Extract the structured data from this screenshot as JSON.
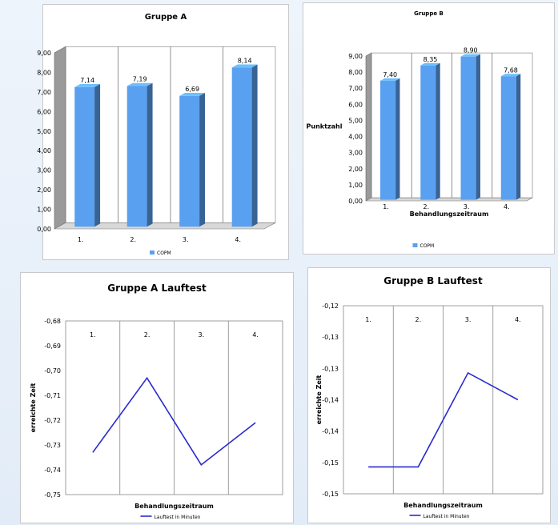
{
  "chart_data": [
    {
      "type": "bar",
      "title": "Gruppe A",
      "categories": [
        "1.",
        "2.",
        "3.",
        "4."
      ],
      "series": [
        {
          "name": "COPM",
          "values": [
            7.14,
            7.19,
            6.69,
            8.14
          ]
        }
      ],
      "value_labels": [
        "7,14",
        "7,19",
        "6,69",
        "8,14"
      ],
      "yticks": [
        "0,00",
        "1,00",
        "2,00",
        "3,00",
        "4,00",
        "5,00",
        "6,00",
        "7,00",
        "8,00",
        "9,00"
      ],
      "ylim": [
        0,
        9
      ],
      "xlabel": "",
      "ylabel": "",
      "legend": "bottom",
      "color": "#5aa0f0"
    },
    {
      "type": "bar",
      "title": "Gruppe B",
      "categories": [
        "1.",
        "2.",
        "3.",
        "4."
      ],
      "series": [
        {
          "name": "COPM",
          "values": [
            7.4,
            8.35,
            8.9,
            7.68
          ]
        }
      ],
      "value_labels": [
        "7,40",
        "8,35",
        "8,90",
        "7,68"
      ],
      "yticks": [
        "0,00",
        "1,00",
        "2,00",
        "3,00",
        "4,00",
        "5,00",
        "6,00",
        "7,00",
        "8,00",
        "9,00"
      ],
      "ylim": [
        0,
        9
      ],
      "xlabel": "Behandlungszeitraum",
      "ylabel": "Punktzahl",
      "legend": "bottom",
      "color": "#5aa0f0"
    },
    {
      "type": "line",
      "title": "Gruppe A Lauftest",
      "categories": [
        "1.",
        "2.",
        "3.",
        "4."
      ],
      "series": [
        {
          "name": "Lauftest in Minuten",
          "values": [
            -0.733,
            -0.703,
            -0.738,
            -0.721
          ]
        }
      ],
      "yticks": [
        "-0,68",
        "-0,69",
        "-0,70",
        "-0,71",
        "-0,72",
        "-0,73",
        "-0,74",
        "-0,75"
      ],
      "ylim": [
        -0.75,
        -0.68
      ],
      "reversed_y": false,
      "xlabel": "Behandlungszeitraum",
      "ylabel": "erreichte Zeit",
      "legend": "bottom",
      "color": "#2a2ad0"
    },
    {
      "type": "line",
      "title": "Gruppe B Lauftest",
      "categories": [
        "1.",
        "2.",
        "3.",
        "4."
      ],
      "series": [
        {
          "name": "Lauftest in Minuten",
          "values": [
            -0.15,
            -0.15,
            -0.1325,
            -0.1375
          ]
        }
      ],
      "yticks": [
        "-0,12",
        "-0,13",
        "-0,13",
        "-0,14",
        "-0,14",
        "-0,15",
        "-0,15"
      ],
      "ylim": [
        -0.155,
        -0.12
      ],
      "xlabel": "Behandlungszeitraum",
      "ylabel": "erreichte Zeit",
      "legend": "bottom",
      "color": "#2a2ad0"
    }
  ]
}
